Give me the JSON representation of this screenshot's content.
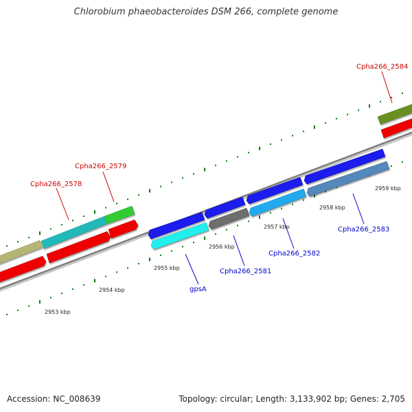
{
  "title": "Chlorobium phaeobacteroides DSM 266, complete genome",
  "accession": "Accession: NC_008639",
  "summary": "Topology: circular; Length: 3,133,902 bp; Genes: 2,705",
  "colors": {
    "backbone": "#8c8c8c",
    "tick": "#007a00",
    "label_forward": "#cc0000",
    "label_reverse": "#0000cc"
  },
  "kbp_labels": [
    "2953 kbp",
    "2954 kbp",
    "2955 kbp",
    "2956 kbp",
    "2957 kbp",
    "2958 kbp",
    "2959 kbp"
  ],
  "gene_labels": {
    "g2578": "Cpha266_2578",
    "g2579": "Cpha266_2579",
    "g2584": "Cpha266_2584",
    "gpsA": "gpsA",
    "g2581": "Cpha266_2581",
    "g2582": "Cpha266_2582",
    "g2583": "Cpha266_2583"
  }
}
